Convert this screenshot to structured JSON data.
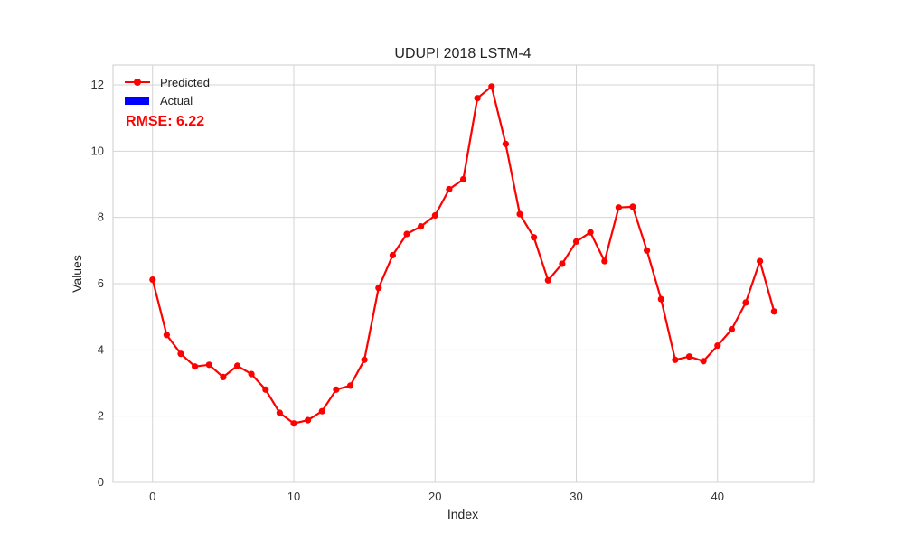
{
  "chart_data": {
    "type": "line",
    "title": "UDUPI 2018 LSTM-4",
    "xlabel": "Index",
    "ylabel": "Values",
    "xlim": [
      -2.8,
      46.8
    ],
    "ylim": [
      0,
      12.6
    ],
    "xticks": [
      0,
      10,
      20,
      30,
      40
    ],
    "yticks": [
      0,
      2,
      4,
      6,
      8,
      10,
      12
    ],
    "grid": true,
    "legend_position": "top-left",
    "series": [
      {
        "name": "Predicted",
        "color": "#ff0000",
        "marker": "circle",
        "x": [
          0,
          1,
          2,
          3,
          4,
          5,
          6,
          7,
          8,
          9,
          10,
          11,
          12,
          13,
          14,
          15,
          16,
          17,
          18,
          19,
          20,
          21,
          22,
          23,
          24,
          25,
          26,
          27,
          28,
          29,
          30,
          31,
          32,
          33,
          34,
          35,
          36,
          37,
          38,
          39,
          40,
          41,
          42,
          43,
          44
        ],
        "values": [
          6.12,
          4.45,
          3.88,
          3.5,
          3.55,
          3.18,
          3.52,
          3.27,
          2.8,
          2.1,
          1.78,
          1.88,
          2.15,
          2.8,
          2.92,
          3.7,
          5.87,
          6.86,
          7.5,
          7.73,
          8.06,
          8.85,
          9.15,
          11.6,
          11.95,
          10.22,
          8.1,
          7.4,
          6.1,
          6.6,
          7.27,
          7.55,
          6.68,
          8.3,
          8.32,
          7.0,
          5.53,
          3.7,
          3.8,
          3.66,
          4.13,
          4.62,
          5.43,
          6.68,
          5.16
        ]
      },
      {
        "name": "Actual",
        "color": "#0000ff",
        "legend_only": true
      }
    ],
    "annotation": {
      "text": "RMSE: 6.22",
      "color": "#ff0000"
    }
  }
}
